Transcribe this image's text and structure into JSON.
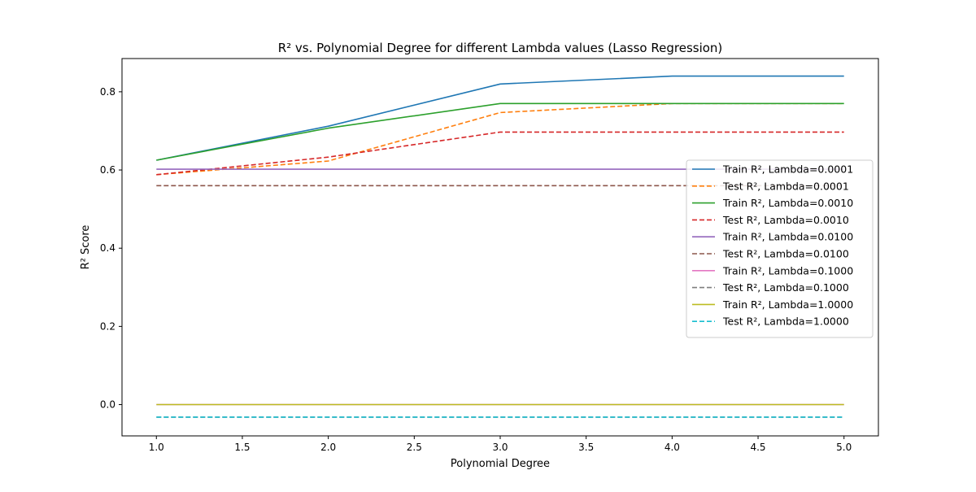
{
  "chart_data": {
    "type": "line",
    "title": "R² vs. Polynomial Degree for different Lambda values (Lasso Regression)",
    "xlabel": "Polynomial Degree",
    "ylabel": "R² Score",
    "xlim": [
      0.8,
      5.2
    ],
    "ylim": [
      -0.08,
      0.885
    ],
    "xticks": [
      1.0,
      1.5,
      2.0,
      2.5,
      3.0,
      3.5,
      4.0,
      4.5,
      5.0
    ],
    "xtick_labels": [
      "1.0",
      "1.5",
      "2.0",
      "2.5",
      "3.0",
      "3.5",
      "4.0",
      "4.5",
      "5.0"
    ],
    "yticks": [
      0.0,
      0.2,
      0.4,
      0.6,
      0.8
    ],
    "ytick_labels": [
      "0.0",
      "0.2",
      "0.4",
      "0.6",
      "0.8"
    ],
    "grid": false,
    "legend_position": "center-right",
    "x": [
      1,
      2,
      3,
      4,
      5
    ],
    "series": [
      {
        "name": "Train R², Lambda=0.0001",
        "color": "#1f77b4",
        "dashed": false,
        "values": [
          0.625,
          0.712,
          0.82,
          0.84,
          0.84
        ]
      },
      {
        "name": "Test R², Lambda=0.0001",
        "color": "#ff7f0e",
        "dashed": true,
        "values": [
          0.588,
          0.623,
          0.747,
          0.77,
          0.77
        ]
      },
      {
        "name": "Train R², Lambda=0.0010",
        "color": "#2ca02c",
        "dashed": false,
        "values": [
          0.625,
          0.707,
          0.77,
          0.77,
          0.77
        ]
      },
      {
        "name": "Test R², Lambda=0.0010",
        "color": "#d62728",
        "dashed": true,
        "values": [
          0.588,
          0.633,
          0.697,
          0.697,
          0.697
        ]
      },
      {
        "name": "Train R², Lambda=0.0100",
        "color": "#9467bd",
        "dashed": false,
        "values": [
          0.602,
          0.602,
          0.602,
          0.602,
          0.602
        ]
      },
      {
        "name": "Test R², Lambda=0.0100",
        "color": "#8c564b",
        "dashed": true,
        "values": [
          0.56,
          0.56,
          0.56,
          0.56,
          0.56
        ]
      },
      {
        "name": "Train R², Lambda=0.1000",
        "color": "#e377c2",
        "dashed": false,
        "values": [
          0.0,
          0.0,
          0.0,
          0.0,
          0.0
        ]
      },
      {
        "name": "Test R², Lambda=0.1000",
        "color": "#7f7f7f",
        "dashed": true,
        "values": [
          -0.032,
          -0.032,
          -0.032,
          -0.032,
          -0.032
        ]
      },
      {
        "name": "Train R², Lambda=1.0000",
        "color": "#bcbd22",
        "dashed": false,
        "values": [
          0.0,
          0.0,
          0.0,
          0.0,
          0.0
        ]
      },
      {
        "name": "Test R², Lambda=1.0000",
        "color": "#17becf",
        "dashed": true,
        "values": [
          -0.032,
          -0.032,
          -0.032,
          -0.032,
          -0.032
        ]
      }
    ]
  }
}
